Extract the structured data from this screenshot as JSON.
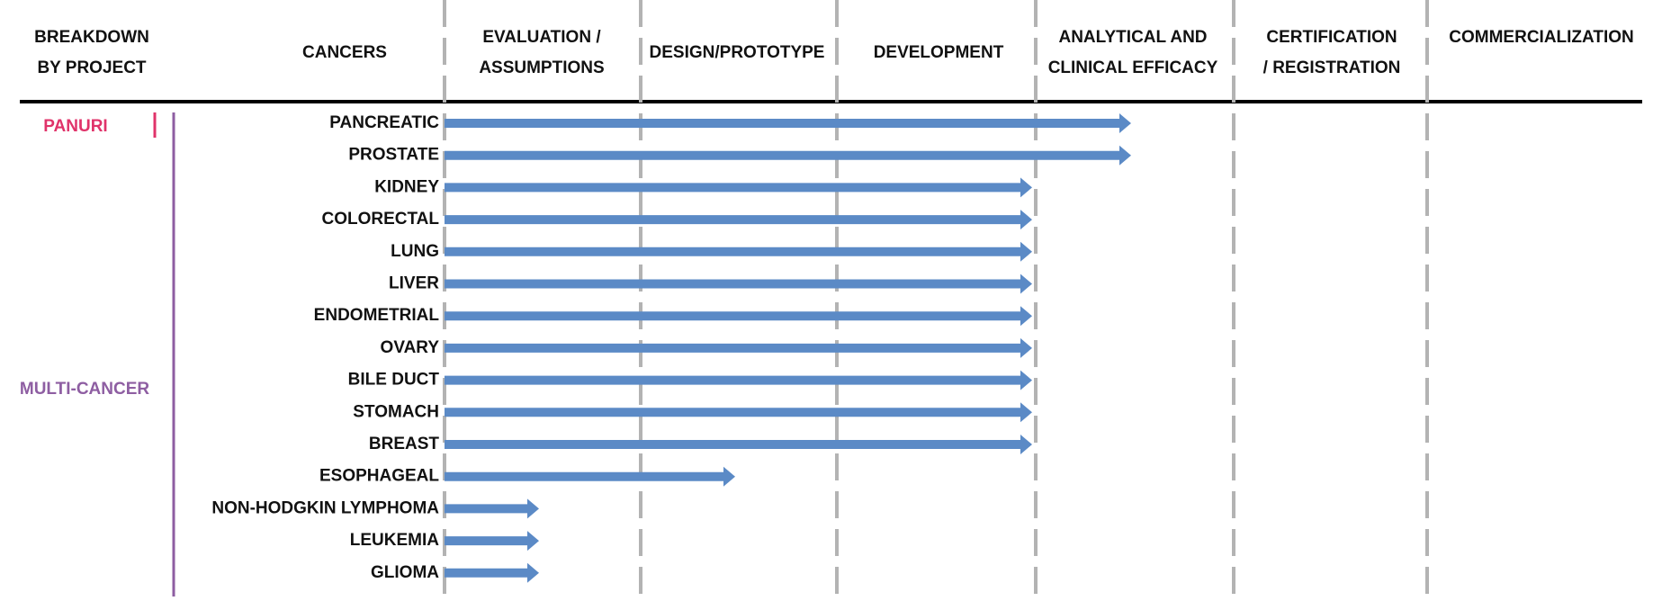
{
  "header": {
    "columns": [
      "BREAKDOWN BY PROJECT",
      "CANCERS",
      "EVALUATION / ASSUMPTIONS",
      "DESIGN/PROTOTYPE",
      "DEVELOPMENT",
      "ANALYTICAL AND CLINICAL EFFICACY",
      "CERTIFICATION / REGISTRATION",
      "COMMERCIALIZATION"
    ]
  },
  "projects": [
    {
      "name": "PANURI",
      "color": "#e0336a",
      "rows": [
        {
          "name": "PANCREATIC",
          "progress": 3.5
        },
        {
          "name": "PROSTATE",
          "progress": 3.5
        }
      ]
    },
    {
      "name": "MULTI-CANCER",
      "color": "#8e5ea2",
      "rows": [
        {
          "name": "KIDNEY",
          "progress": 3
        },
        {
          "name": "COLORECTAL",
          "progress": 3
        },
        {
          "name": "LUNG",
          "progress": 3
        },
        {
          "name": "LIVER",
          "progress": 3
        },
        {
          "name": "ENDOMETRIAL",
          "progress": 3
        },
        {
          "name": "OVARY",
          "progress": 3
        },
        {
          "name": "BILE DUCT",
          "progress": 3
        },
        {
          "name": "STOMACH",
          "progress": 3
        },
        {
          "name": "BREAST",
          "progress": 3
        },
        {
          "name": "ESOPHAGEAL",
          "progress": 1.5
        },
        {
          "name": "NON-HODGKIN LYMPHOMA",
          "progress": 0.5
        },
        {
          "name": "LEUKEMIA",
          "progress": 0.5
        },
        {
          "name": "GLIOMA",
          "progress": 0.5
        }
      ]
    }
  ],
  "arrow_color": "#5b8ac6"
}
